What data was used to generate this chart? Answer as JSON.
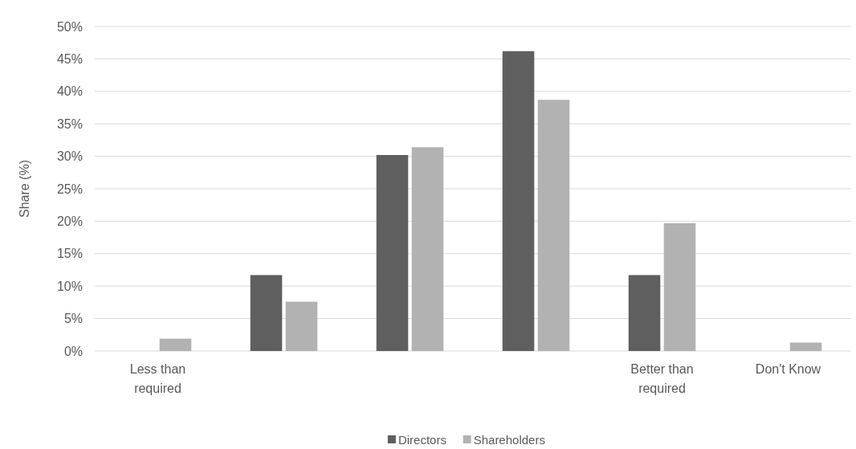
{
  "chart_data": {
    "type": "bar",
    "ylabel": "Share (%)",
    "categories": [
      "Less than required",
      null,
      null,
      null,
      "Better than required",
      "Don't Know"
    ],
    "series": [
      {
        "name": "Directors",
        "color": "#5f5f5f",
        "values": [
          0,
          11.7,
          30.2,
          46.2,
          11.7,
          0
        ]
      },
      {
        "name": "Shareholders",
        "color": "#b2b2b2",
        "values": [
          1.9,
          7.6,
          31.4,
          38.7,
          19.7,
          1.3
        ]
      }
    ],
    "ylim": [
      0,
      50
    ],
    "yticks": [
      {
        "value": 0,
        "label": "0%"
      },
      {
        "value": 5,
        "label": "5%"
      },
      {
        "value": 10,
        "label": "10%"
      },
      {
        "value": 15,
        "label": "15%"
      },
      {
        "value": 20,
        "label": "20%"
      },
      {
        "value": 25,
        "label": "25%"
      },
      {
        "value": 30,
        "label": "30%"
      },
      {
        "value": 35,
        "label": "35%"
      },
      {
        "value": 40,
        "label": "40%"
      },
      {
        "value": 45,
        "label": "45%"
      },
      {
        "value": 50,
        "label": "50%"
      }
    ],
    "grid": "y",
    "legend": "bottom"
  }
}
